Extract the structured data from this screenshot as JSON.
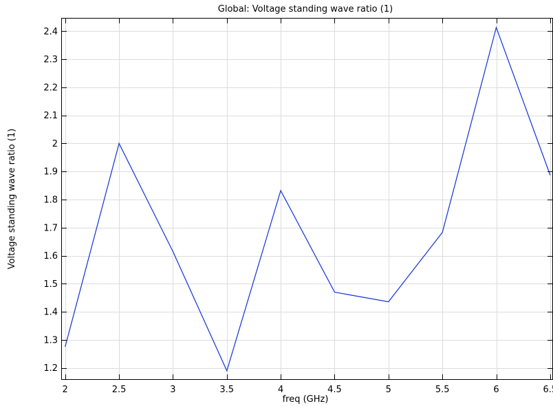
{
  "chart_data": {
    "type": "line",
    "title": "Global: Voltage standing wave ratio (1)",
    "xlabel": "freq (GHz)",
    "ylabel": "Voltage standing wave ratio (1)",
    "xlim": [
      1.97,
      6.52
    ],
    "ylim": [
      1.16,
      2.445
    ],
    "x_ticks": [
      2,
      2.5,
      3,
      3.5,
      4,
      4.5,
      5,
      5.5,
      6,
      6.5
    ],
    "x_tick_labels": [
      "2",
      "2.5",
      "3",
      "3.5",
      "4",
      "4.5",
      "5",
      "5.5",
      "6",
      "6.5"
    ],
    "y_ticks": [
      1.2,
      1.3,
      1.4,
      1.5,
      1.6,
      1.7,
      1.8,
      1.9,
      2.0,
      2.1,
      2.2,
      2.3,
      2.4
    ],
    "y_tick_labels": [
      "1.2",
      "1.3",
      "1.4",
      "1.5",
      "1.6",
      "1.7",
      "1.8",
      "1.9",
      "2",
      "2.1",
      "2.2",
      "2.3",
      "2.4"
    ],
    "grid": true,
    "series": [
      {
        "color": "#1f3fdc",
        "x": [
          2,
          2.5,
          3,
          3.5,
          4,
          4.5,
          5,
          5.5,
          6,
          6.5
        ],
        "y": [
          1.275,
          2.0,
          1.615,
          1.19,
          1.832,
          1.47,
          1.436,
          1.683,
          2.413,
          1.887
        ]
      }
    ]
  }
}
